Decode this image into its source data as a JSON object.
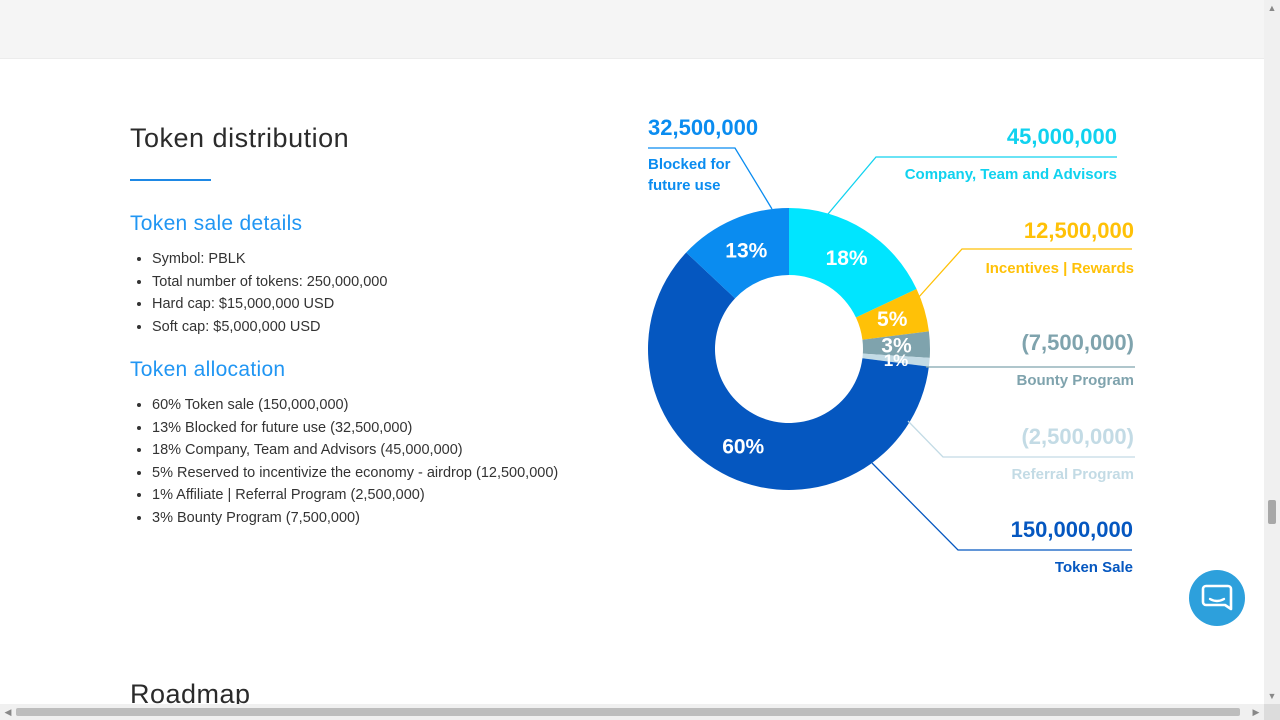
{
  "section": {
    "title": "Token distribution",
    "sale_heading": "Token sale details",
    "sale_items": [
      "Symbol: PBLK",
      "Total number of tokens: 250,000,000",
      "Hard cap: $15,000,000 USD",
      "Soft cap: $5,000,000 USD"
    ],
    "allocation_heading": "Token allocation",
    "allocation_items": [
      "60% Token sale (150,000,000)",
      "13% Blocked for future use (32,500,000)",
      "18% Company, Team and Advisors (45,000,000)",
      "5% Reserved to incentivize the economy - airdrop (12,500,000)",
      "1% Affiliate | Referral Program (2,500,000)",
      "3% Bounty Program (7,500,000)"
    ]
  },
  "next_section": {
    "title": "Roadmap"
  },
  "chart_data": {
    "type": "pie",
    "categories": [
      "Token Sale",
      "Blocked for future use",
      "Company, Team and Advisors",
      "Incentives | Rewards",
      "Bounty Program",
      "Referral Program"
    ],
    "values": [
      60,
      13,
      18,
      5,
      3,
      1
    ],
    "slice_order_clockwise_from_top": [
      {
        "label": "Company, Team and Advisors",
        "value": 18,
        "pct_label": "18%",
        "amount": "45,000,000",
        "color": "#00e5ff"
      },
      {
        "label": "Incentives | Rewards",
        "value": 5,
        "pct_label": "5%",
        "amount": "12,500,000",
        "color": "#ffc107"
      },
      {
        "label": "Bounty Program",
        "value": 3,
        "pct_label": "3%",
        "amount": "(7,500,000)",
        "color": "#7fa3ad"
      },
      {
        "label": "Referral Program",
        "value": 1,
        "pct_label": "1%",
        "amount": "(2,500,000)",
        "color": "#c3dbe5"
      },
      {
        "label": "Token Sale",
        "value": 60,
        "pct_label": "60%",
        "amount": "150,000,000",
        "color": "#0557c0"
      },
      {
        "label": "Blocked for future use",
        "value": 13,
        "pct_label": "13%",
        "amount": "32,500,000",
        "color": "#0a8cf0"
      }
    ],
    "callouts": {
      "blocked": {
        "amount": "32,500,000",
        "label_line1": "Blocked for",
        "label_line2": "future use",
        "color": "#0a8cf0"
      },
      "company": {
        "amount": "45,000,000",
        "label": "Company, Team and Advisors",
        "color": "#10d2ef"
      },
      "incentives": {
        "amount": "12,500,000",
        "label": "Incentives | Rewards",
        "color": "#ffc107"
      },
      "bounty": {
        "amount": "(7,500,000)",
        "label": "Bounty Program",
        "color": "#7fa3ad"
      },
      "referral": {
        "amount": "(2,500,000)",
        "label": "Referral Program",
        "color": "#c3dbe5"
      },
      "sale": {
        "amount": "150,000,000",
        "label": "Token Sale",
        "color": "#0557c0"
      }
    },
    "donut": true
  },
  "chat": {
    "icon": "chat-icon"
  }
}
